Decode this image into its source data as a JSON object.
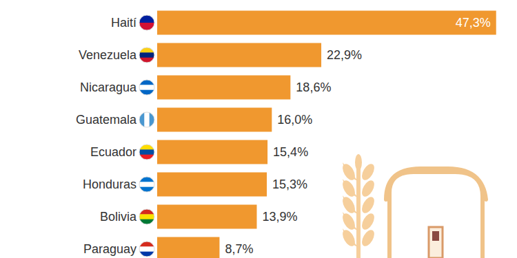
{
  "chart_data": {
    "type": "bar",
    "orientation": "horizontal",
    "categories": [
      "Haití",
      "Venezuela",
      "Nicaragua",
      "Guatemala",
      "Ecuador",
      "Honduras",
      "Bolivia",
      "Paraguay"
    ],
    "values": [
      47.3,
      22.9,
      18.6,
      16.0,
      15.4,
      15.3,
      13.9,
      8.7
    ],
    "value_labels": [
      "47,3%",
      "22,9%",
      "18,6%",
      "16,0%",
      "15,4%",
      "15,3%",
      "13,9%",
      "8,7%"
    ],
    "color": "#f0982f",
    "xlim": [
      0,
      48
    ],
    "data_labels": true,
    "tick_labels": "y",
    "grid": false
  }
}
